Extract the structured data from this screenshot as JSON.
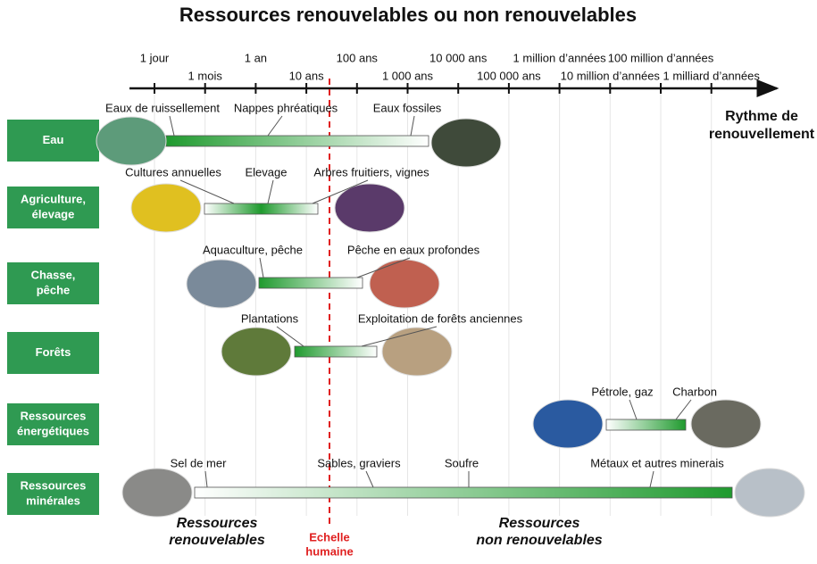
{
  "title": "Ressources renouvelables ou non renouvelables",
  "timescale": {
    "labels": [
      "1 jour",
      "1 mois",
      "1 an",
      "10 ans",
      "100 ans",
      "1 000 ans",
      "10 000 ans",
      "100 000 ans",
      "1 million d’années",
      "10 million d’années",
      "100 million d’années",
      "1 milliard d’années"
    ],
    "axis_label": [
      "Rythme de",
      "renouvellement"
    ]
  },
  "rows": [
    {
      "label": [
        "Eau"
      ],
      "items": [
        "Eaux de ruissellement",
        "Nappes phréatiques",
        "Eaux fossiles"
      ]
    },
    {
      "label": [
        "Agriculture,",
        "élevage"
      ],
      "items": [
        "Cultures annuelles",
        "Elevage",
        "Arbres fruitiers, vignes"
      ]
    },
    {
      "label": [
        "Chasse,",
        "pêche"
      ],
      "items": [
        "Aquaculture, pêche",
        "Pêche en eaux profondes"
      ]
    },
    {
      "label": [
        "Forêts"
      ],
      "items": [
        "Plantations",
        "Exploitation de forêts anciennes"
      ]
    },
    {
      "label": [
        "Ressources",
        "énergétiques"
      ],
      "items": [
        "Pétrole, gaz",
        "Charbon"
      ]
    },
    {
      "label": [
        "Ressources",
        "minérales"
      ],
      "items": [
        "Sel de mer",
        "Sables, graviers",
        "Soufre",
        "Métaux et autres minerais"
      ]
    }
  ],
  "footer": {
    "renewable": [
      "Ressources",
      "renouvelables"
    ],
    "human_scale": [
      "Echelle",
      "humaine"
    ],
    "non_renewable": [
      "Ressources",
      "non renouvelables"
    ]
  }
}
